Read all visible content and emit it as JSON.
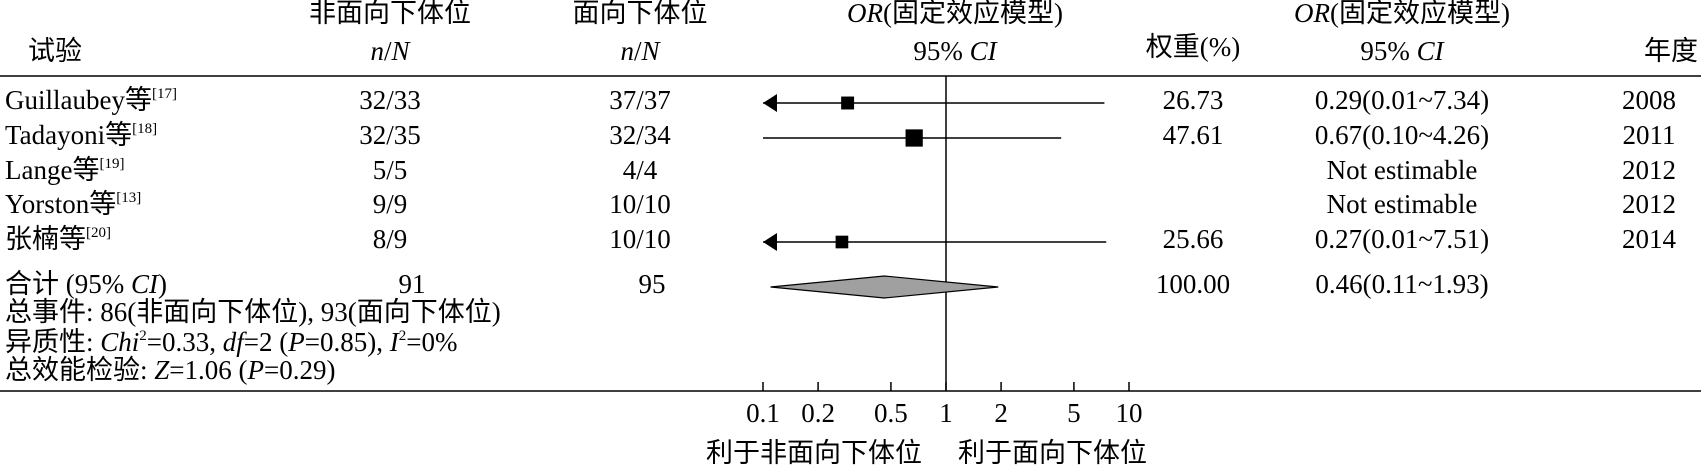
{
  "chart_data": {
    "type": "forest",
    "headers": {
      "study": "试验",
      "group1": "非面向下体位",
      "group1_sub": [
        {
          "t": "n",
          "i": true
        },
        {
          "t": "/"
        },
        {
          "t": "N",
          "i": true
        }
      ],
      "group2": "面向下体位",
      "group2_sub": [
        {
          "t": "n",
          "i": true
        },
        {
          "t": "/"
        },
        {
          "t": "N",
          "i": true
        }
      ],
      "plot": [
        {
          "t": "OR",
          "i": true
        },
        {
          "t": "(固定效应模型)"
        }
      ],
      "plot_sub": [
        {
          "t": "95% "
        },
        {
          "t": "CI",
          "i": true
        }
      ],
      "weight": "权重(%)",
      "ci": [
        {
          "t": "OR",
          "i": true
        },
        {
          "t": "(固定效应模型)"
        }
      ],
      "ci_sub": [
        {
          "t": "95% "
        },
        {
          "t": "CI",
          "i": true
        }
      ],
      "year": "年度"
    },
    "rows": [
      {
        "study": "Guillaubey等",
        "ref": "[17]",
        "events1": "32/33",
        "events2": "37/37",
        "weight": 26.73,
        "or": 0.29,
        "ci": [
          0.01,
          7.34
        ],
        "ci_label": "0.29(0.01~7.34)",
        "year": 2008
      },
      {
        "study": "Tadayoni等",
        "ref": "[18]",
        "events1": "32/35",
        "events2": "32/34",
        "weight": 47.61,
        "or": 0.67,
        "ci": [
          0.1,
          4.26
        ],
        "ci_label": "0.67(0.10~4.26)",
        "year": 2011
      },
      {
        "study": "Lange等",
        "ref": "[19]",
        "events1": "5/5",
        "events2": "4/4",
        "weight": null,
        "or": null,
        "ci": [
          null,
          null
        ],
        "ci_label": "Not estimable",
        "year": 2012
      },
      {
        "study": "Yorston等",
        "ref": "[13]",
        "events1": "9/9",
        "events2": "10/10",
        "weight": null,
        "or": null,
        "ci": [
          null,
          null
        ],
        "ci_label": "Not estimable",
        "year": 2012
      },
      {
        "study": "张楠等",
        "ref": "[20]",
        "events1": "8/9",
        "events2": "10/10",
        "weight": 25.66,
        "or": 0.27,
        "ci": [
          0.01,
          7.51
        ],
        "ci_label": "0.27(0.01~7.51)",
        "year": 2014
      }
    ],
    "total": {
      "label": [
        {
          "t": "合计 (95% "
        },
        {
          "t": "CI",
          "i": true
        },
        {
          "t": ")"
        }
      ],
      "events1": 91,
      "events2": 95,
      "weight": 100,
      "weight_label": "100.00",
      "or": 0.46,
      "ci": [
        0.11,
        1.93
      ],
      "ci_label": "0.46(0.11~1.93)"
    },
    "events_text": "总事件: 86(非面向下体位), 93(面向下体位)",
    "heterogeneity": [
      {
        "t": "异质性: "
      },
      {
        "t": "Chi",
        "i": true
      },
      {
        "t": "2",
        "sup": true
      },
      {
        "t": "=0.33, "
      },
      {
        "t": "df",
        "i": true
      },
      {
        "t": "=2 ("
      },
      {
        "t": "P",
        "i": true
      },
      {
        "t": "=0.85), "
      },
      {
        "t": "I",
        "i": true
      },
      {
        "t": "2",
        "sup": true
      },
      {
        "t": "=0%"
      }
    ],
    "overall_test": [
      {
        "t": "总效能检验: "
      },
      {
        "t": "Z",
        "i": true
      },
      {
        "t": "=1.06 ("
      },
      {
        "t": "P",
        "i": true
      },
      {
        "t": "=0.29)"
      }
    ],
    "x_scale": "log",
    "xlim": [
      0.1,
      10
    ],
    "xticks": [
      0.1,
      0.2,
      0.5,
      1,
      2,
      5,
      10
    ],
    "favours_left": "利于非面向下体位",
    "favours_right": "利于面向下体位",
    "square_color": "#000000",
    "diamond_color": "#a0a0a0"
  }
}
